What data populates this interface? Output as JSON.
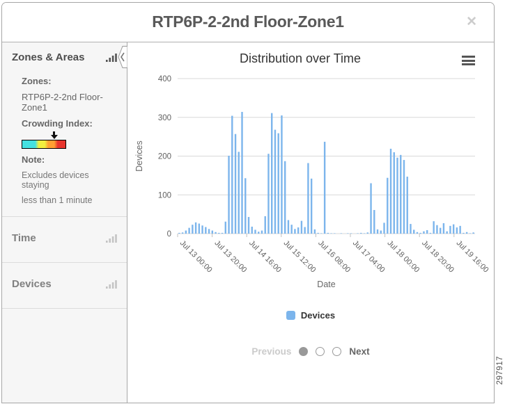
{
  "figure_number": "297917",
  "dialog": {
    "title": "RTP6P-2-2nd Floor-Zone1",
    "close_label": "✕"
  },
  "icons": {
    "close": "x-icon",
    "collapse": "chevron-left-icon",
    "section": "bar-chart-icon",
    "chart_menu": "hamburger-menu-icon",
    "crowding_marker": "down-arrow-icon"
  },
  "sidebar": {
    "sections": [
      {
        "label": "Zones & Areas",
        "expanded": true
      },
      {
        "label": "Time",
        "expanded": false
      },
      {
        "label": "Devices",
        "expanded": false
      }
    ],
    "zones_label": "Zones:",
    "zones_value": "RTP6P-2-2nd Floor-Zone1",
    "crowding_label": "Crowding Index:",
    "crowding_scale_colors": [
      "#45e1e1",
      "#f2ef3f",
      "#ffa033",
      "#e8352e"
    ],
    "crowding_marker_position_pct": 72,
    "note_label": "Note:",
    "note_lines": [
      "Excludes devices staying",
      "less than 1 minute"
    ]
  },
  "chart_data": {
    "type": "bar",
    "title": "Distribution over Time",
    "xlabel": "Date",
    "ylabel": "Devices",
    "ylim": [
      0,
      400
    ],
    "yticks": [
      0,
      100,
      200,
      300,
      400
    ],
    "grid": true,
    "legend_position": "bottom",
    "x_tick_interval_hours": 20,
    "x_tick_labels": [
      "Jul 13 00:00",
      "Jul 13 20:00",
      "Jul 14 16:00",
      "Jul 15 12:00",
      "Jul 16 08:00",
      "Jul 17 04:00",
      "Jul 18 00:00",
      "Jul 18 20:00",
      "Jul 19 16:00"
    ],
    "series": [
      {
        "name": "Devices",
        "color": "#7cb5ec",
        "values": [
          2,
          3,
          8,
          15,
          23,
          29,
          26,
          21,
          17,
          12,
          8,
          4,
          2,
          2,
          31,
          201,
          304,
          257,
          211,
          314,
          143,
          43,
          18,
          10,
          5,
          8,
          45,
          206,
          311,
          268,
          259,
          305,
          187,
          35,
          23,
          12,
          16,
          33,
          17,
          182,
          142,
          11,
          2,
          1,
          237,
          2,
          1,
          1,
          0,
          1,
          0,
          1,
          1,
          0,
          1,
          2,
          1,
          3,
          130,
          61,
          11,
          8,
          28,
          144,
          219,
          210,
          196,
          203,
          190,
          147,
          25,
          10,
          4,
          2,
          6,
          9,
          2,
          32,
          22,
          15,
          27,
          6,
          20,
          24,
          16,
          20,
          2,
          4,
          1,
          3
        ]
      }
    ]
  },
  "legend": {
    "items": [
      {
        "label": "Devices",
        "color": "#7cb5ec"
      }
    ]
  },
  "pagination": {
    "previous_label": "Previous",
    "next_label": "Next",
    "pages": 3,
    "active_page": 1
  }
}
